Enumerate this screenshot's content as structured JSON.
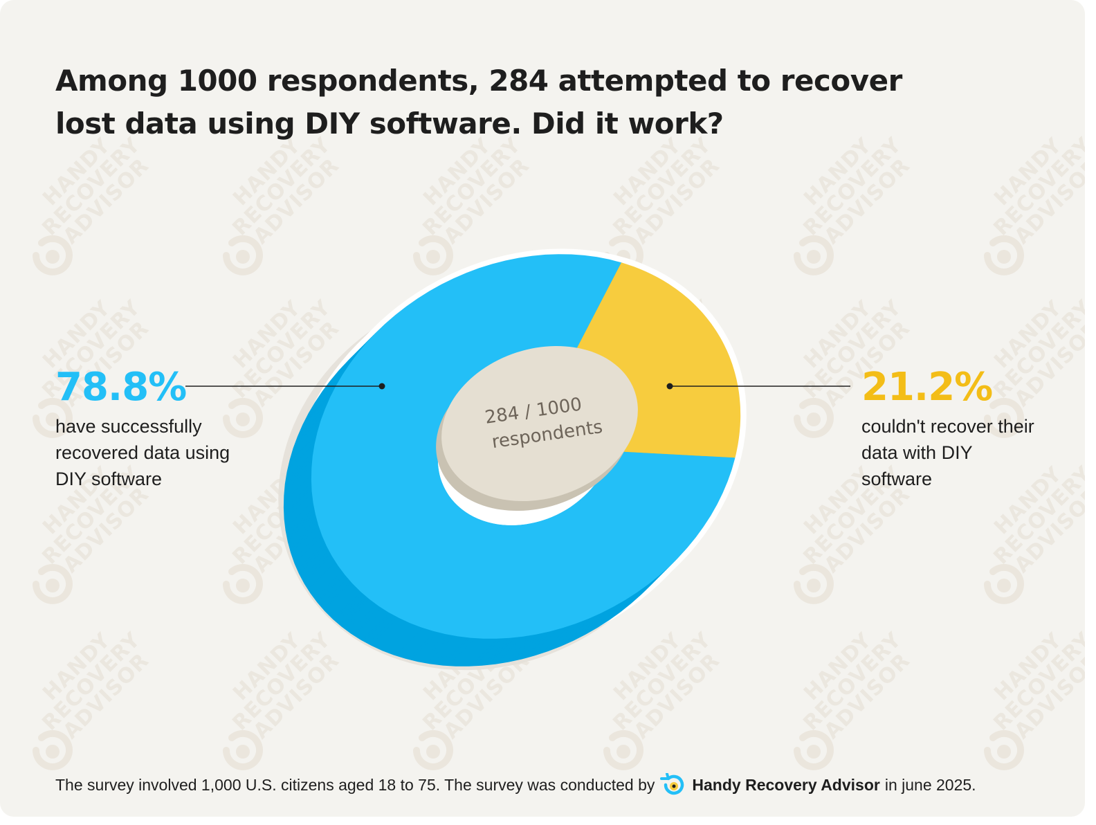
{
  "title": "Among 1000 respondents, 284 attempted to recover lost data using DIY software. Did it work?",
  "watermark": "HANDY\nRECOVERY\nADVISOR",
  "colors": {
    "success": "#23bff7",
    "success_dark": "#00a3e0",
    "fail": "#f7cc3e",
    "fail_dark": "#ecae22",
    "center": "#e5dfd2",
    "center_dark": "#c9c2b2",
    "background": "#f4f3ef"
  },
  "chart_data": {
    "type": "pie",
    "title": "Among 1000 respondents, 284 attempted to recover lost data using DIY software. Did it work?",
    "center_label": "284 / 1000 respondents",
    "center_lines": [
      "284 / 1000",
      "respondents"
    ],
    "slices": [
      {
        "label": "have successfully recovered data using DIY software",
        "value": 78.8,
        "display": "78.8%",
        "color": "#23bff7"
      },
      {
        "label": "couldn't recover their data with DIY software",
        "value": 21.2,
        "display": "21.2%",
        "color": "#f7cc3e"
      }
    ]
  },
  "left_callout": {
    "value": "78.8%",
    "text": "have successfully recovered data using DIY software"
  },
  "right_callout": {
    "value": "21.2%",
    "text": "couldn't recover their data with DIY software"
  },
  "footer": {
    "prefix": "The survey involved 1,000 U.S. citizens aged 18 to 75. The survey was conducted by",
    "brand": "Handy Recovery Advisor",
    "suffix": "in june 2025.",
    "logo_icon": "handy-recovery-advisor-logo-icon"
  }
}
